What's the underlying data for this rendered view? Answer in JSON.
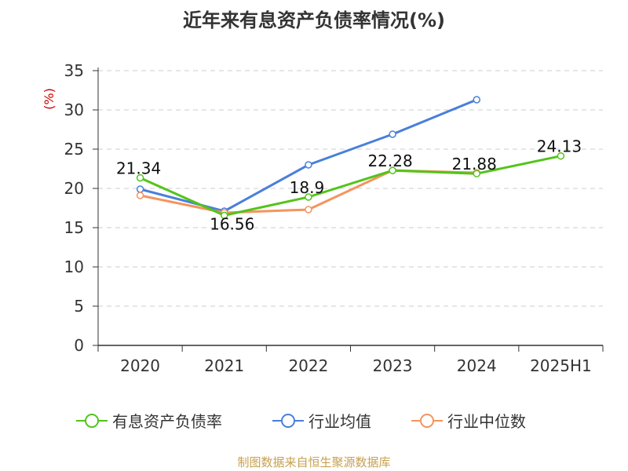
{
  "title": "近年来有息资产负债率情况(%)",
  "source": "制图数据来自恒生聚源数据库",
  "chart_data": {
    "type": "line",
    "title": "近年来有息资产负债率情况(%)",
    "ylabel": "(%)",
    "xlabel": "",
    "categories": [
      "2020",
      "2021",
      "2022",
      "2023",
      "2024",
      "2025H1"
    ],
    "ylim": [
      0,
      35
    ],
    "yticks": [
      "0",
      "5",
      "10",
      "15",
      "20",
      "25",
      "30",
      "35"
    ],
    "grid": true,
    "legend_position": "bottom",
    "series": [
      {
        "name": "有息资产负债率",
        "color": "#52c41a",
        "values": [
          21.34,
          16.56,
          18.9,
          22.28,
          21.88,
          24.13
        ],
        "labels": [
          "21.34",
          "16.56",
          "18.9",
          "22.28",
          "21.88",
          "24.13"
        ]
      },
      {
        "name": "行业均值",
        "color": "#4a7fdb",
        "values": [
          19.9,
          17.1,
          23.0,
          26.9,
          31.3,
          null
        ]
      },
      {
        "name": "行业中位数",
        "color": "#f4945e",
        "values": [
          19.1,
          16.9,
          17.3,
          22.3,
          22.0,
          null
        ]
      }
    ]
  }
}
